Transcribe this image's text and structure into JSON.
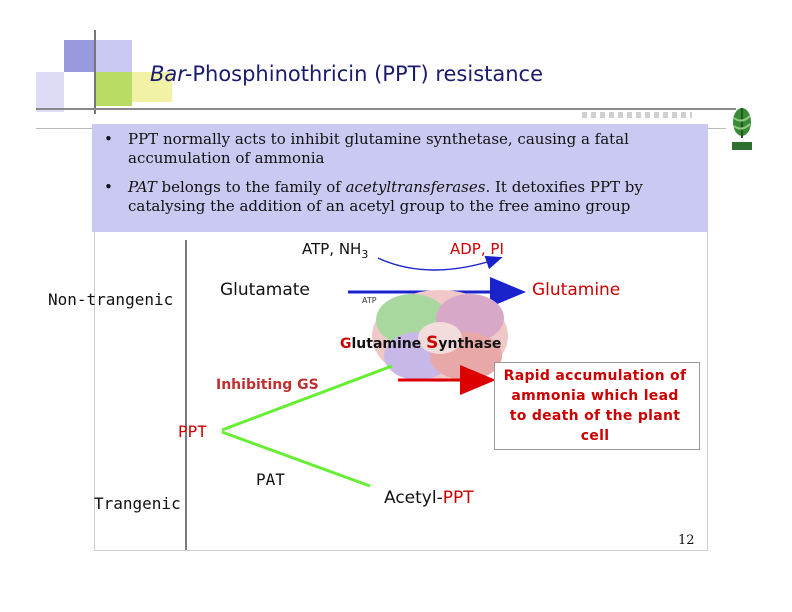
{
  "slide": {
    "title_part1": "Bar-",
    "title_part2": "Phosphinothricin (PPT) resistance",
    "page_number": "12"
  },
  "bullets": [
    {
      "marker": "•",
      "text_a": "PPT normally acts to inhibit glutamine synthetase, causing a fatal accumulation of ammonia",
      "text_b": "",
      "text_c": ""
    },
    {
      "marker": "•",
      "text_a": "PAT",
      "text_b": " belongs to the family of ",
      "text_c": "acetyltransferases",
      "text_d": ". It detoxifies PPT by catalysing the addition of an acetyl group to the free amino group"
    }
  ],
  "diagram": {
    "atp_nh3_prefix": "ATP, NH",
    "atp_nh3_sub": "3",
    "adp_pi": "ADP, PI",
    "non_transgenic": "Non-trangenic",
    "glutamate": "Glutamate",
    "glutamine": "Glutamine",
    "enzyme_label": "Glutamine Synthase",
    "enzyme_G": "G",
    "enzyme_mid1": "lutamine ",
    "enzyme_S": "S",
    "enzyme_mid2": "ynthase",
    "atp_small": "ATP",
    "inhibiting": "Inhibiting GS",
    "ppt": "PPT",
    "pat": "PAT",
    "transgenic": "Trangenic",
    "acetyl_prefix": "Acetyl-",
    "acetyl_suffix": "PPT",
    "rapid": "Rapid accumulation of\nammonia which lead\nto death of the plant\ncell"
  },
  "colors": {
    "title": "#1a1a6e",
    "bullet_bg": "#c9c9f2",
    "green_arrow": "#66ee33",
    "blue_arrow": "#1a22cc",
    "red": "#cc0000",
    "inhibit_text": "#c03030"
  }
}
